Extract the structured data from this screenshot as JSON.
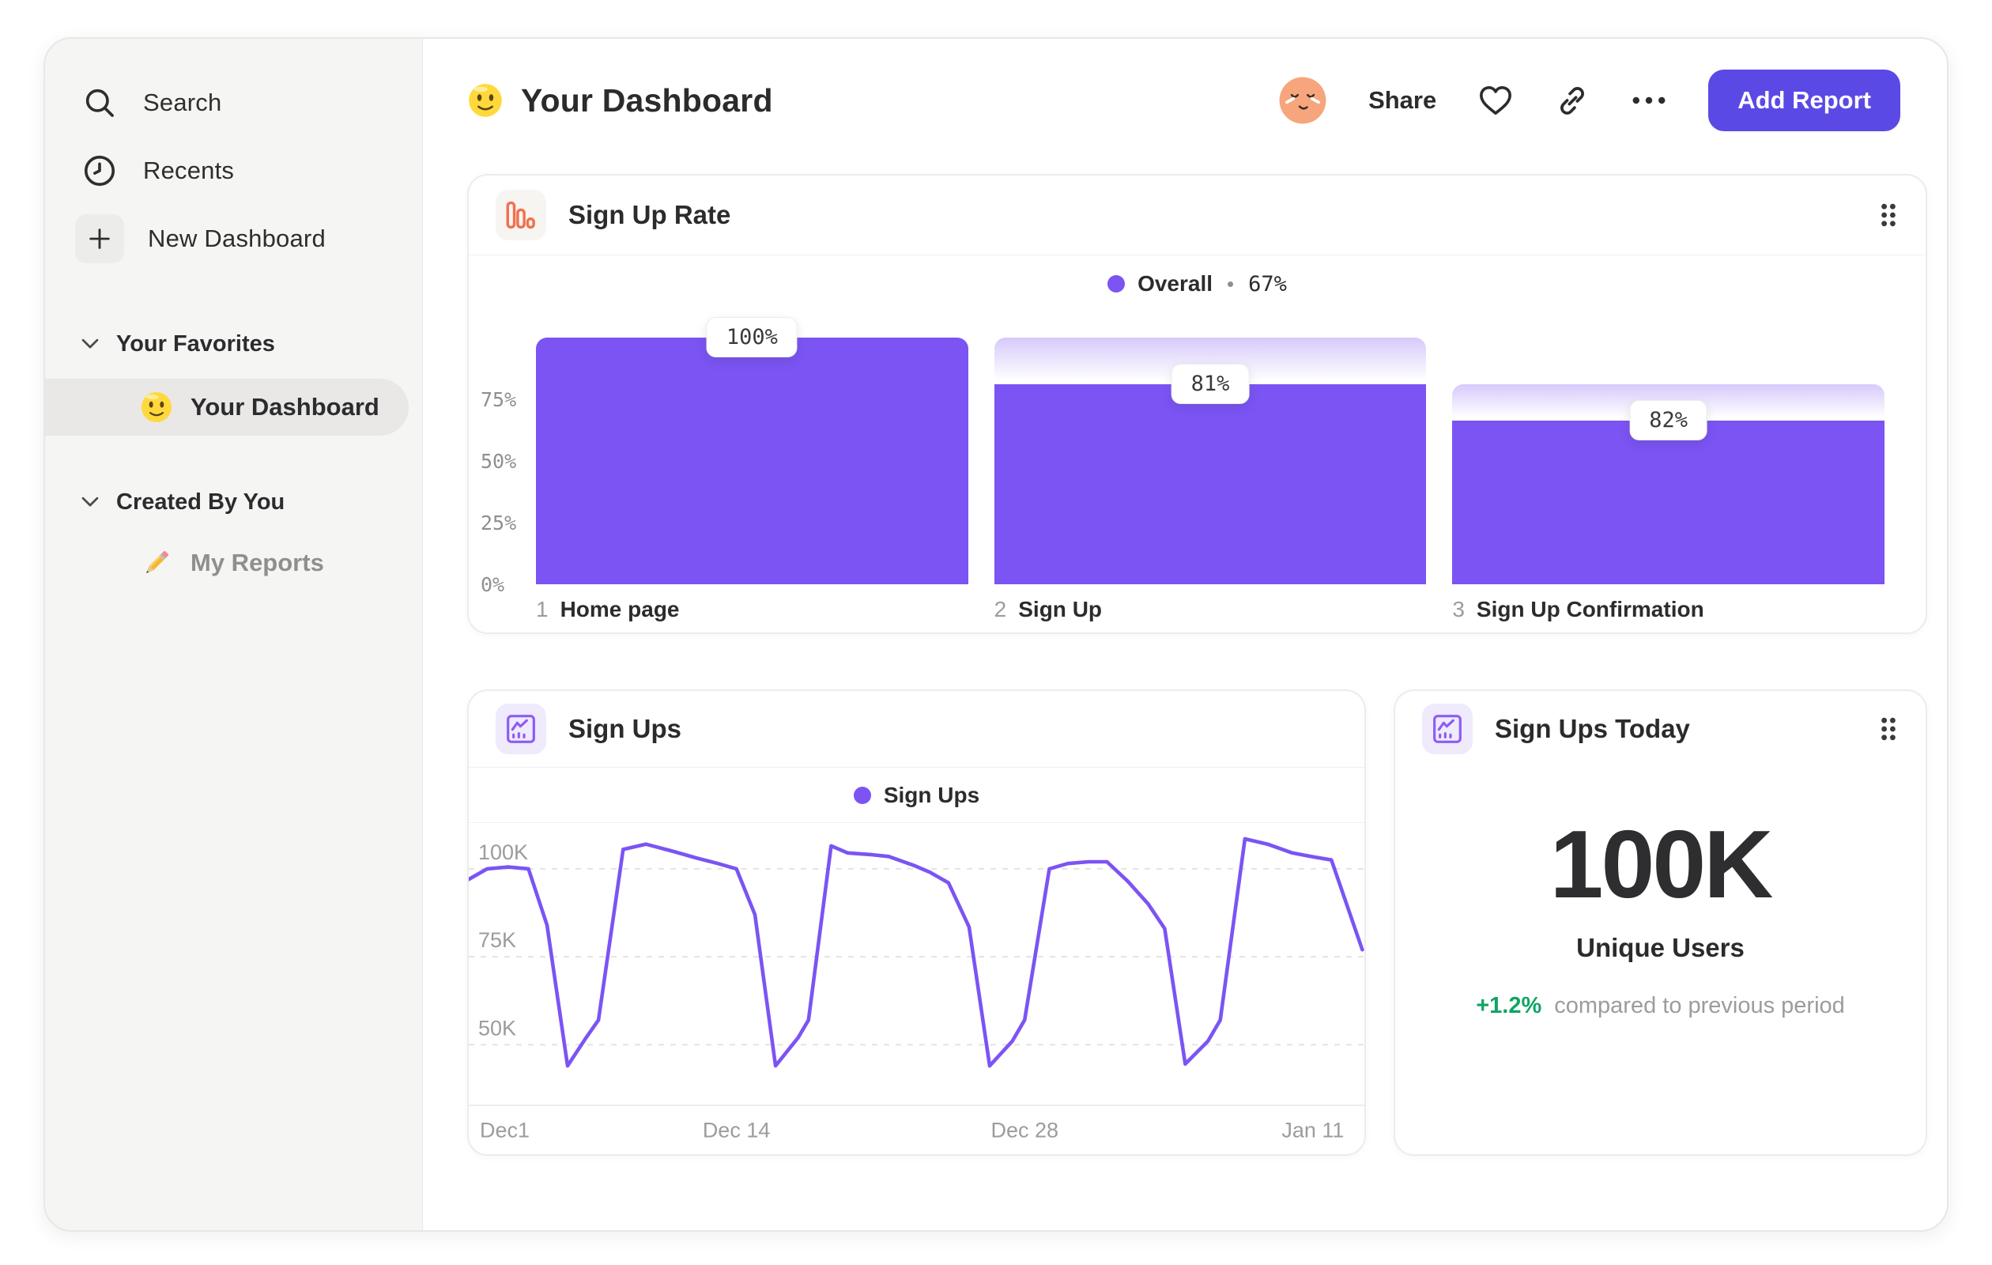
{
  "sidebar": {
    "nav": [
      {
        "label": "Search",
        "icon": "search-icon"
      },
      {
        "label": "Recents",
        "icon": "clock-icon"
      },
      {
        "label": "New Dashboard",
        "icon": "plus-icon"
      }
    ],
    "sections": [
      {
        "title": "Your Favorites",
        "items": [
          {
            "label": "Your Dashboard",
            "icon": "smiley-emoji",
            "selected": true
          }
        ]
      },
      {
        "title": "Created By You",
        "items": [
          {
            "label": "My Reports",
            "icon": "pencil-emoji",
            "selected": false
          }
        ]
      }
    ]
  },
  "header": {
    "title": "Your Dashboard",
    "share_label": "Share",
    "add_report_label": "Add Report"
  },
  "colors": {
    "accent_purple": "#7b54f3",
    "button_purple": "#5b49e6",
    "funnel_icon_orange": "#f2704e",
    "positive_green": "#0fa563",
    "text_dark": "#2c2c2e",
    "text_gray": "#9c9c9a"
  },
  "chart_data": [
    {
      "type": "bar",
      "chart_kind": "funnel",
      "title": "Sign Up Rate",
      "legend": {
        "label": "Overall",
        "separator": "•",
        "value": "67%"
      },
      "legend_position": "top-center",
      "categories": [
        "Home page",
        "Sign Up",
        "Sign Up Confirmation"
      ],
      "step_numbers": [
        "1",
        "2",
        "3"
      ],
      "values": [
        100,
        81,
        82
      ],
      "value_labels": [
        "100%",
        "81%",
        "82%"
      ],
      "bar_top_pct": [
        100,
        81,
        66.4
      ],
      "carryover_top_pct": [
        100,
        100,
        81
      ],
      "ylim": [
        0,
        100
      ],
      "yticks": [
        {
          "label": "75%",
          "value": 75
        },
        {
          "label": "50%",
          "value": 50
        },
        {
          "label": "25%",
          "value": 25
        },
        {
          "label": "0%",
          "value": 0
        }
      ],
      "grid": false
    },
    {
      "type": "line",
      "title": "Sign Ups",
      "legend": {
        "label": "Sign Ups"
      },
      "legend_position": "top-center",
      "unit": "K",
      "x_domain": [
        0,
        43.5
      ],
      "y_domain": [
        33,
        113
      ],
      "gridlines": [
        {
          "label": "100K",
          "value": 100
        },
        {
          "label": "75K",
          "value": 75
        },
        {
          "label": "50K",
          "value": 50
        }
      ],
      "xticks": [
        {
          "label": "Dec1",
          "day": 0,
          "align": "left"
        },
        {
          "label": "Dec 14",
          "day": 13,
          "align": "center"
        },
        {
          "label": "Dec 28",
          "day": 27,
          "align": "center"
        },
        {
          "label": "Jan 11",
          "day": 41,
          "align": "center"
        }
      ],
      "points": [
        [
          0,
          97
        ],
        [
          0.9,
          100
        ],
        [
          1.9,
          100.5
        ],
        [
          2.9,
          100
        ],
        [
          3.8,
          84
        ],
        [
          4.8,
          44
        ],
        [
          5.7,
          52
        ],
        [
          6.3,
          57
        ],
        [
          7.5,
          105.5
        ],
        [
          8.6,
          107
        ],
        [
          9.9,
          105
        ],
        [
          11.1,
          103
        ],
        [
          12.1,
          101.5
        ],
        [
          13,
          100
        ],
        [
          13.9,
          87
        ],
        [
          14.9,
          44
        ],
        [
          16,
          52
        ],
        [
          16.5,
          57
        ],
        [
          17.6,
          106.5
        ],
        [
          18.4,
          104.5
        ],
        [
          19.6,
          104
        ],
        [
          20.4,
          103.5
        ],
        [
          21.6,
          101
        ],
        [
          22.4,
          99
        ],
        [
          23.3,
          96
        ],
        [
          24.3,
          83.5
        ],
        [
          25.3,
          44
        ],
        [
          26.4,
          51
        ],
        [
          27,
          57
        ],
        [
          28.2,
          100
        ],
        [
          29.1,
          101.5
        ],
        [
          30.1,
          102
        ],
        [
          31,
          102
        ],
        [
          32,
          96.5
        ],
        [
          33,
          90
        ],
        [
          33.8,
          83
        ],
        [
          34.8,
          44.5
        ],
        [
          35.9,
          51
        ],
        [
          36.5,
          57
        ],
        [
          37.7,
          108.5
        ],
        [
          38.8,
          107
        ],
        [
          40,
          104.5
        ],
        [
          40.9,
          103.5
        ],
        [
          41.9,
          102.5
        ],
        [
          43.4,
          77
        ]
      ]
    },
    {
      "type": "stat",
      "title": "Sign Ups Today",
      "value": "100K",
      "value_label": "Unique Users",
      "delta": "+1.2%",
      "delta_description": "compared to previous period"
    }
  ]
}
